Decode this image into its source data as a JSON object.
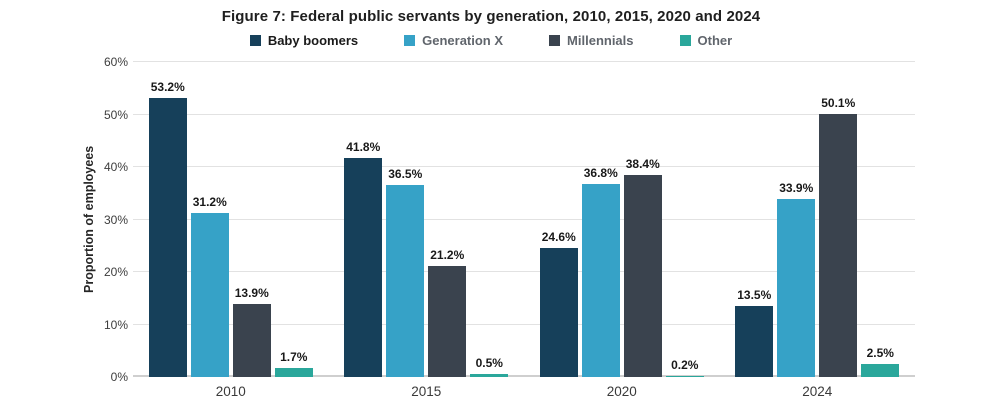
{
  "chart_data": {
    "type": "bar",
    "title": "Figure 7: Federal public servants by generation, 2010, 2015, 2020 and 2024",
    "ylabel": "Proportion of employees",
    "xlabel": "",
    "categories": [
      "2010",
      "2015",
      "2020",
      "2024"
    ],
    "series": [
      {
        "name": "Baby boomers",
        "color": "#16405a",
        "label_color": "#1a1a1a",
        "values": [
          53.2,
          41.8,
          24.6,
          13.5
        ]
      },
      {
        "name": "Generation X",
        "color": "#36a2c7",
        "label_color": "#60656c",
        "values": [
          31.2,
          36.5,
          36.8,
          33.9
        ]
      },
      {
        "name": "Millennials",
        "color": "#3a434e",
        "label_color": "#60656c",
        "values": [
          13.9,
          21.2,
          38.4,
          50.1
        ]
      },
      {
        "name": "Other",
        "color": "#2aa79b",
        "label_color": "#60656c",
        "values": [
          1.7,
          0.5,
          0.2,
          2.5
        ]
      }
    ],
    "ylim": [
      0,
      60
    ],
    "ytick_step": 10,
    "yticks": [
      "0%",
      "10%",
      "20%",
      "30%",
      "40%",
      "50%",
      "60%"
    ],
    "value_suffix": "%",
    "grid": true,
    "legend_position": "top"
  }
}
